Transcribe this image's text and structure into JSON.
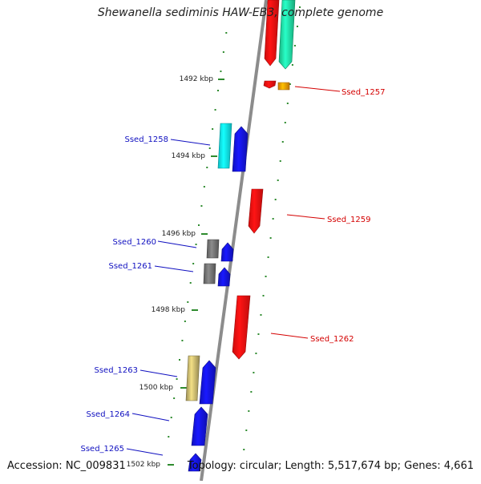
{
  "title": "Shewanella sediminis HAW-EB3, complete genome",
  "accession": "Accession: NC_009831",
  "topology": "Topology: circular; Length: 5,517,674 bp; Genes: 4,661",
  "colors": {
    "backbone": "#8c8c8c",
    "tick": "#2e8b2e",
    "forward_label": "#d40000",
    "reverse_label": "#1010c0",
    "red": "#ff1010",
    "teal": "#20e0a0",
    "orange": "#ff9a00",
    "cyan": "#10e8f0",
    "blue": "#1414e8",
    "gray": "#707070",
    "khaki": "#c2b26a"
  },
  "scale_labels": [
    "1492 kbp",
    "1494 kbp",
    "1496 kbp",
    "1498 kbp",
    "1500 kbp",
    "1502 kbp"
  ],
  "features": [
    {
      "name": "",
      "color": "red",
      "strand": "outer"
    },
    {
      "name": "",
      "color": "teal",
      "strand": "outer"
    },
    {
      "name": "",
      "color": "red",
      "strand": "outer"
    },
    {
      "name": "Ssed_1257",
      "color": "orange",
      "strand": "outer"
    },
    {
      "name": "Ssed_1258",
      "color": "cyan",
      "strand": "inner"
    },
    {
      "name": "",
      "color": "blue",
      "strand": "inner"
    },
    {
      "name": "Ssed_1259",
      "color": "red",
      "strand": "outer"
    },
    {
      "name": "Ssed_1260",
      "color": "gray",
      "strand": "inner"
    },
    {
      "name": "",
      "color": "blue",
      "strand": "inner"
    },
    {
      "name": "Ssed_1261",
      "color": "gray",
      "strand": "inner"
    },
    {
      "name": "",
      "color": "blue",
      "strand": "inner"
    },
    {
      "name": "Ssed_1262",
      "color": "red",
      "strand": "outer"
    },
    {
      "name": "Ssed_1263",
      "color": "khaki",
      "strand": "inner"
    },
    {
      "name": "",
      "color": "blue",
      "strand": "inner"
    },
    {
      "name": "Ssed_1264",
      "color": "blue",
      "strand": "inner"
    },
    {
      "name": "Ssed_1265",
      "color": "blue",
      "strand": "inner"
    }
  ]
}
